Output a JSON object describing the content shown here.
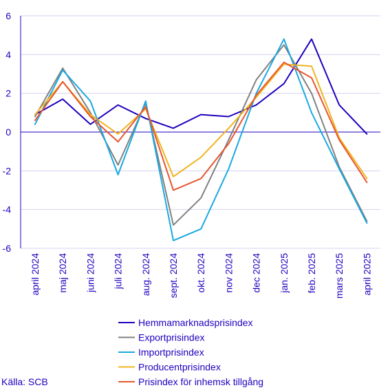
{
  "chart_data": {
    "type": "line",
    "categories": [
      "april 2024",
      "maj 2024",
      "juni 2024",
      "juli 2024",
      "aug. 2024",
      "sept. 2024",
      "okt. 2024",
      "nov 2024",
      "dec 2024",
      "jan. 2025",
      "feb. 2025",
      "mars 2025",
      "april 2025"
    ],
    "ylim": [
      -6,
      6
    ],
    "yticks": [
      6,
      4,
      2,
      0,
      -2,
      -4,
      -6
    ],
    "ytick_labels": [
      "6",
      "4",
      "2",
      "0",
      "-2",
      "-4",
      "-6"
    ],
    "grid": true,
    "legend_position": "bottom",
    "series": [
      {
        "name": "Hemmamarknadsprisindex",
        "color": "#1e00be",
        "values": [
          0.9,
          1.7,
          0.4,
          1.4,
          0.7,
          0.2,
          0.9,
          0.8,
          1.4,
          2.5,
          4.8,
          1.4,
          -0.1
        ]
      },
      {
        "name": "Exportprisindex",
        "color": "#808080",
        "values": [
          0.8,
          3.3,
          1.0,
          -1.7,
          1.5,
          -4.8,
          -3.4,
          -0.4,
          2.7,
          4.5,
          2.0,
          -1.8,
          -4.6
        ]
      },
      {
        "name": "Importprisindex",
        "color": "#1aa9e0",
        "values": [
          0.4,
          3.2,
          1.6,
          -2.2,
          1.6,
          -5.6,
          -5.0,
          -1.9,
          2.0,
          4.8,
          1.0,
          -1.9,
          -4.7
        ]
      },
      {
        "name": "Producentprisindex",
        "color": "#f0b41e",
        "values": [
          0.9,
          2.6,
          0.9,
          -0.1,
          1.2,
          -2.3,
          -1.3,
          0.2,
          1.8,
          3.5,
          3.4,
          -0.3,
          -2.4
        ]
      },
      {
        "name": "Prisindex för inhemsk tillgång",
        "color": "#e8552f",
        "values": [
          0.6,
          2.6,
          0.8,
          -0.5,
          1.3,
          -3.0,
          -2.4,
          -0.6,
          1.9,
          3.6,
          2.8,
          -0.4,
          -2.6
        ]
      }
    ]
  },
  "source_label": "Källa: SCB"
}
